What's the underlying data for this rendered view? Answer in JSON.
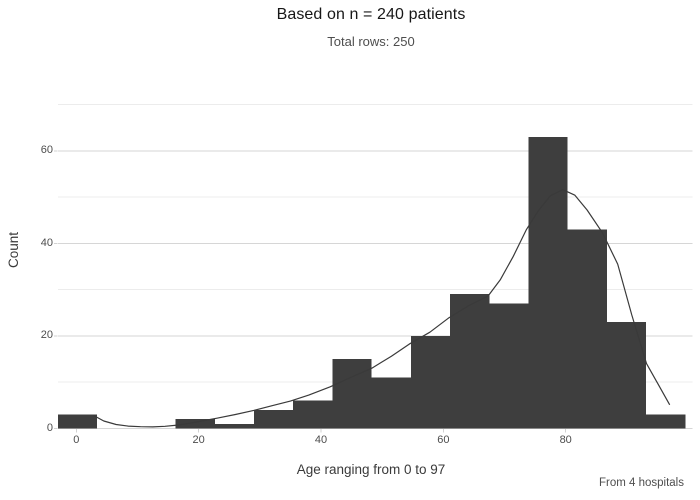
{
  "header": {
    "title": "Based on n = 240 patients",
    "subtitle": "Total rows: 250"
  },
  "caption": "From 4 hospitals",
  "chart_data": {
    "type": "bar",
    "subtype": "histogram-with-density-curve",
    "title": "Based on n = 240 patients",
    "subtitle": "Total rows: 250",
    "caption": "From 4 hospitals",
    "xlabel": "Age ranging from 0 to 97",
    "ylabel": "Count",
    "xlim": [
      -3.3,
      100.7
    ],
    "ylim": [
      0,
      71
    ],
    "x_ticks": [
      0,
      20,
      40,
      60,
      80
    ],
    "y_ticks": [
      0,
      20,
      40,
      60
    ],
    "y_minor_ticks": [
      10,
      30,
      50,
      70
    ],
    "grid": "horizontal-only",
    "legend_position": "none",
    "bins": {
      "start_age": -3.0,
      "bin_width_age": 6.41,
      "counts": [
        3,
        0,
        0,
        2,
        1,
        4,
        6,
        15,
        11,
        20,
        29,
        27,
        63,
        43,
        23,
        3
      ],
      "total": 250
    },
    "density_curve": [
      [
        2.8,
        2.8
      ],
      [
        4.5,
        1.6
      ],
      [
        6.5,
        0.85
      ],
      [
        8.5,
        0.5
      ],
      [
        10.5,
        0.36
      ],
      [
        12.5,
        0.33
      ],
      [
        14.5,
        0.45
      ],
      [
        16.5,
        0.72
      ],
      [
        18.5,
        1.1
      ],
      [
        20.5,
        1.6
      ],
      [
        23,
        2.2
      ],
      [
        26,
        3.0
      ],
      [
        29,
        3.9
      ],
      [
        32,
        4.9
      ],
      [
        35,
        5.9
      ],
      [
        38,
        7.2
      ],
      [
        41.5,
        9.0
      ],
      [
        45,
        11.1
      ],
      [
        48.3,
        13.0
      ],
      [
        51.5,
        15.6
      ],
      [
        54.4,
        18.2
      ],
      [
        57.8,
        20.8
      ],
      [
        60.8,
        23.8
      ],
      [
        64,
        26.4
      ],
      [
        67.3,
        28.6
      ],
      [
        69.3,
        32.1
      ],
      [
        71.4,
        37.1
      ],
      [
        73.6,
        43.0
      ],
      [
        75.5,
        47.0
      ],
      [
        77.5,
        50.3
      ],
      [
        79.5,
        51.6
      ],
      [
        81.5,
        50.4
      ],
      [
        83.5,
        47.2
      ],
      [
        86,
        42.3
      ],
      [
        88.5,
        35.5
      ],
      [
        90.8,
        24.5
      ],
      [
        93.2,
        14.0
      ],
      [
        95,
        9.8
      ],
      [
        97,
        5.1
      ]
    ],
    "colors": {
      "bar_fill": "#3e3e3e",
      "curve_stroke": "#3a3a3a",
      "grid_major": "#d6d6d6",
      "grid_minor": "#ececec",
      "axis_tick_mark": "#d2d2d2",
      "tick_label": "#4d4d4d",
      "background": "#ffffff"
    }
  }
}
